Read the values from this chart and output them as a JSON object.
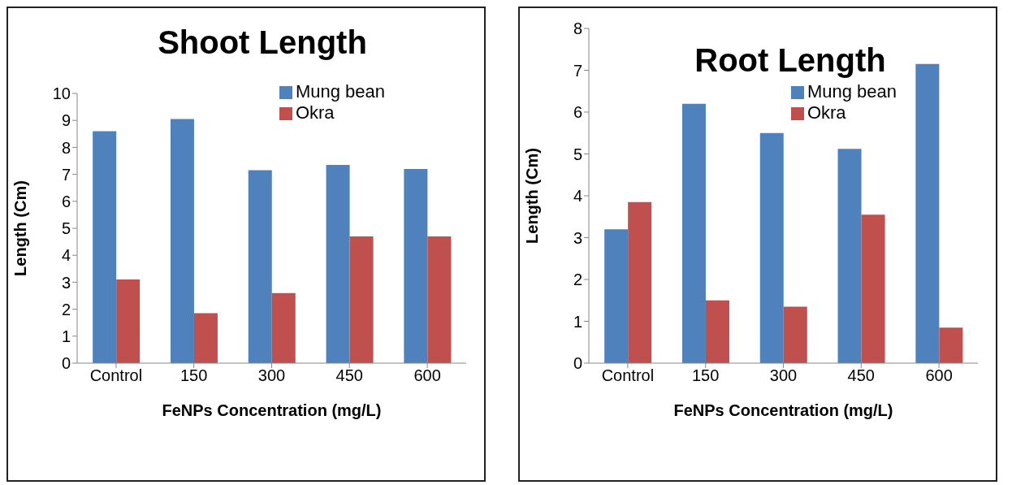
{
  "chart_data": [
    {
      "type": "bar",
      "title": "Shoot Length",
      "xlabel": "FeNPs Concentration (mg/L)",
      "ylabel": "Length (Cm)",
      "categories": [
        "Control",
        "150",
        "300",
        "450",
        "600"
      ],
      "series": [
        {
          "name": "Mung bean",
          "color": "#4f81bd",
          "values": [
            8.6,
            9.05,
            7.15,
            7.35,
            7.2
          ]
        },
        {
          "name": "Okra",
          "color": "#c0504d",
          "values": [
            3.1,
            1.85,
            2.6,
            4.7,
            4.7
          ]
        }
      ],
      "ylim": [
        0,
        10
      ],
      "yticks": [
        0,
        1,
        2,
        3,
        4,
        5,
        6,
        7,
        8,
        9,
        10
      ],
      "grid": false,
      "legend": "top right"
    },
    {
      "type": "bar",
      "title": "Root Length",
      "xlabel": "FeNPs Concentration (mg/L)",
      "ylabel": "Length (Cm)",
      "categories": [
        "Control",
        "150",
        "300",
        "450",
        "600"
      ],
      "series": [
        {
          "name": "Mung bean",
          "color": "#4f81bd",
          "values": [
            3.2,
            6.2,
            5.5,
            5.12,
            7.15
          ]
        },
        {
          "name": "Okra",
          "color": "#c0504d",
          "values": [
            3.85,
            1.5,
            1.35,
            3.55,
            0.85
          ]
        }
      ],
      "ylim": [
        0,
        8
      ],
      "yticks": [
        0,
        1,
        2,
        3,
        4,
        5,
        6,
        7,
        8
      ],
      "grid": false,
      "legend": "top right"
    }
  ]
}
